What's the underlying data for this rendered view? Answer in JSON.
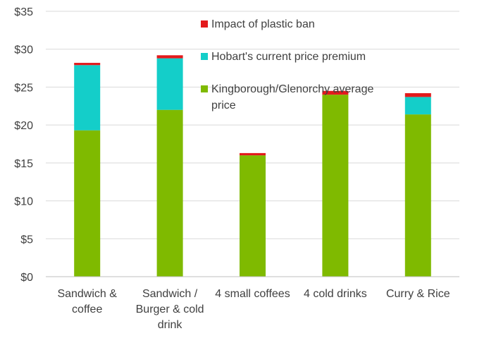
{
  "chart_data": {
    "type": "bar",
    "stacked": true,
    "categories": [
      [
        "Sandwich &",
        "coffee"
      ],
      [
        "Sandwich /",
        "Burger & cold",
        "drink"
      ],
      [
        "4 small coffees"
      ],
      [
        "4 cold drinks"
      ],
      [
        "Curry & Rice"
      ]
    ],
    "series": [
      {
        "name": "Kingborough/Glenorchy average price",
        "legend_lines": [
          "Kingborough/Glenorchy average",
          "price"
        ],
        "color": "#7fba00",
        "values": [
          19.3,
          22.0,
          16.0,
          24.0,
          21.4
        ]
      },
      {
        "name": "Hobart's current price premium",
        "legend_lines": [
          "Hobart's current price premium"
        ],
        "color": "#14cec9",
        "values": [
          8.6,
          6.8,
          0.0,
          0.0,
          2.3
        ]
      },
      {
        "name": "Impact of plastic ban",
        "legend_lines": [
          "Impact of plastic ban"
        ],
        "color": "#e31a1c",
        "values": [
          0.3,
          0.4,
          0.3,
          0.5,
          0.5
        ]
      }
    ],
    "y_ticks": [
      "$0",
      "$5",
      "$10",
      "$15",
      "$20",
      "$25",
      "$30",
      "$35"
    ],
    "ylim": [
      0,
      35
    ],
    "title": "",
    "xlabel": "",
    "ylabel": "",
    "grid": true,
    "legend_position": "top-right"
  }
}
